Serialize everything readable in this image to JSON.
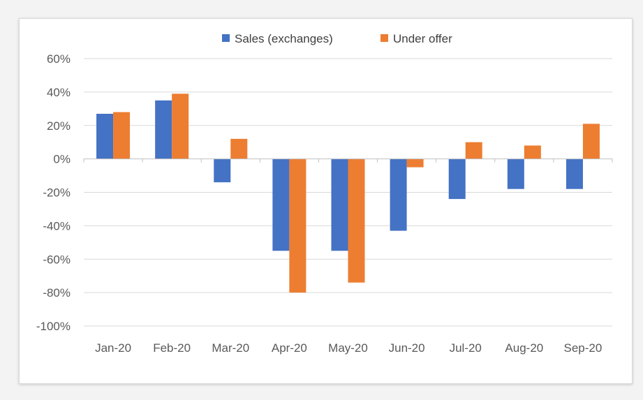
{
  "chart_data": {
    "type": "bar",
    "categories": [
      "Jan-20",
      "Feb-20",
      "Mar-20",
      "Apr-20",
      "May-20",
      "Jun-20",
      "Jul-20",
      "Aug-20",
      "Sep-20"
    ],
    "series": [
      {
        "name": "Sales (exchanges)",
        "color": "#4472c4",
        "values": [
          27,
          35,
          -14,
          -55,
          -55,
          -43,
          -24,
          -18,
          -18
        ]
      },
      {
        "name": "Under offer",
        "color": "#ed7d31",
        "values": [
          28,
          39,
          12,
          -80,
          -74,
          -5,
          10,
          8,
          21
        ]
      }
    ],
    "ylim": [
      -100,
      60
    ],
    "yticks": [
      60,
      40,
      20,
      0,
      -20,
      -40,
      -60,
      -80,
      -100
    ],
    "ytick_labels": [
      "60%",
      "40%",
      "20%",
      "0%",
      "-20%",
      "-40%",
      "-60%",
      "-80%",
      "-100%"
    ],
    "grid": true,
    "legend": "top",
    "title": "",
    "xlabel": "",
    "ylabel": ""
  }
}
